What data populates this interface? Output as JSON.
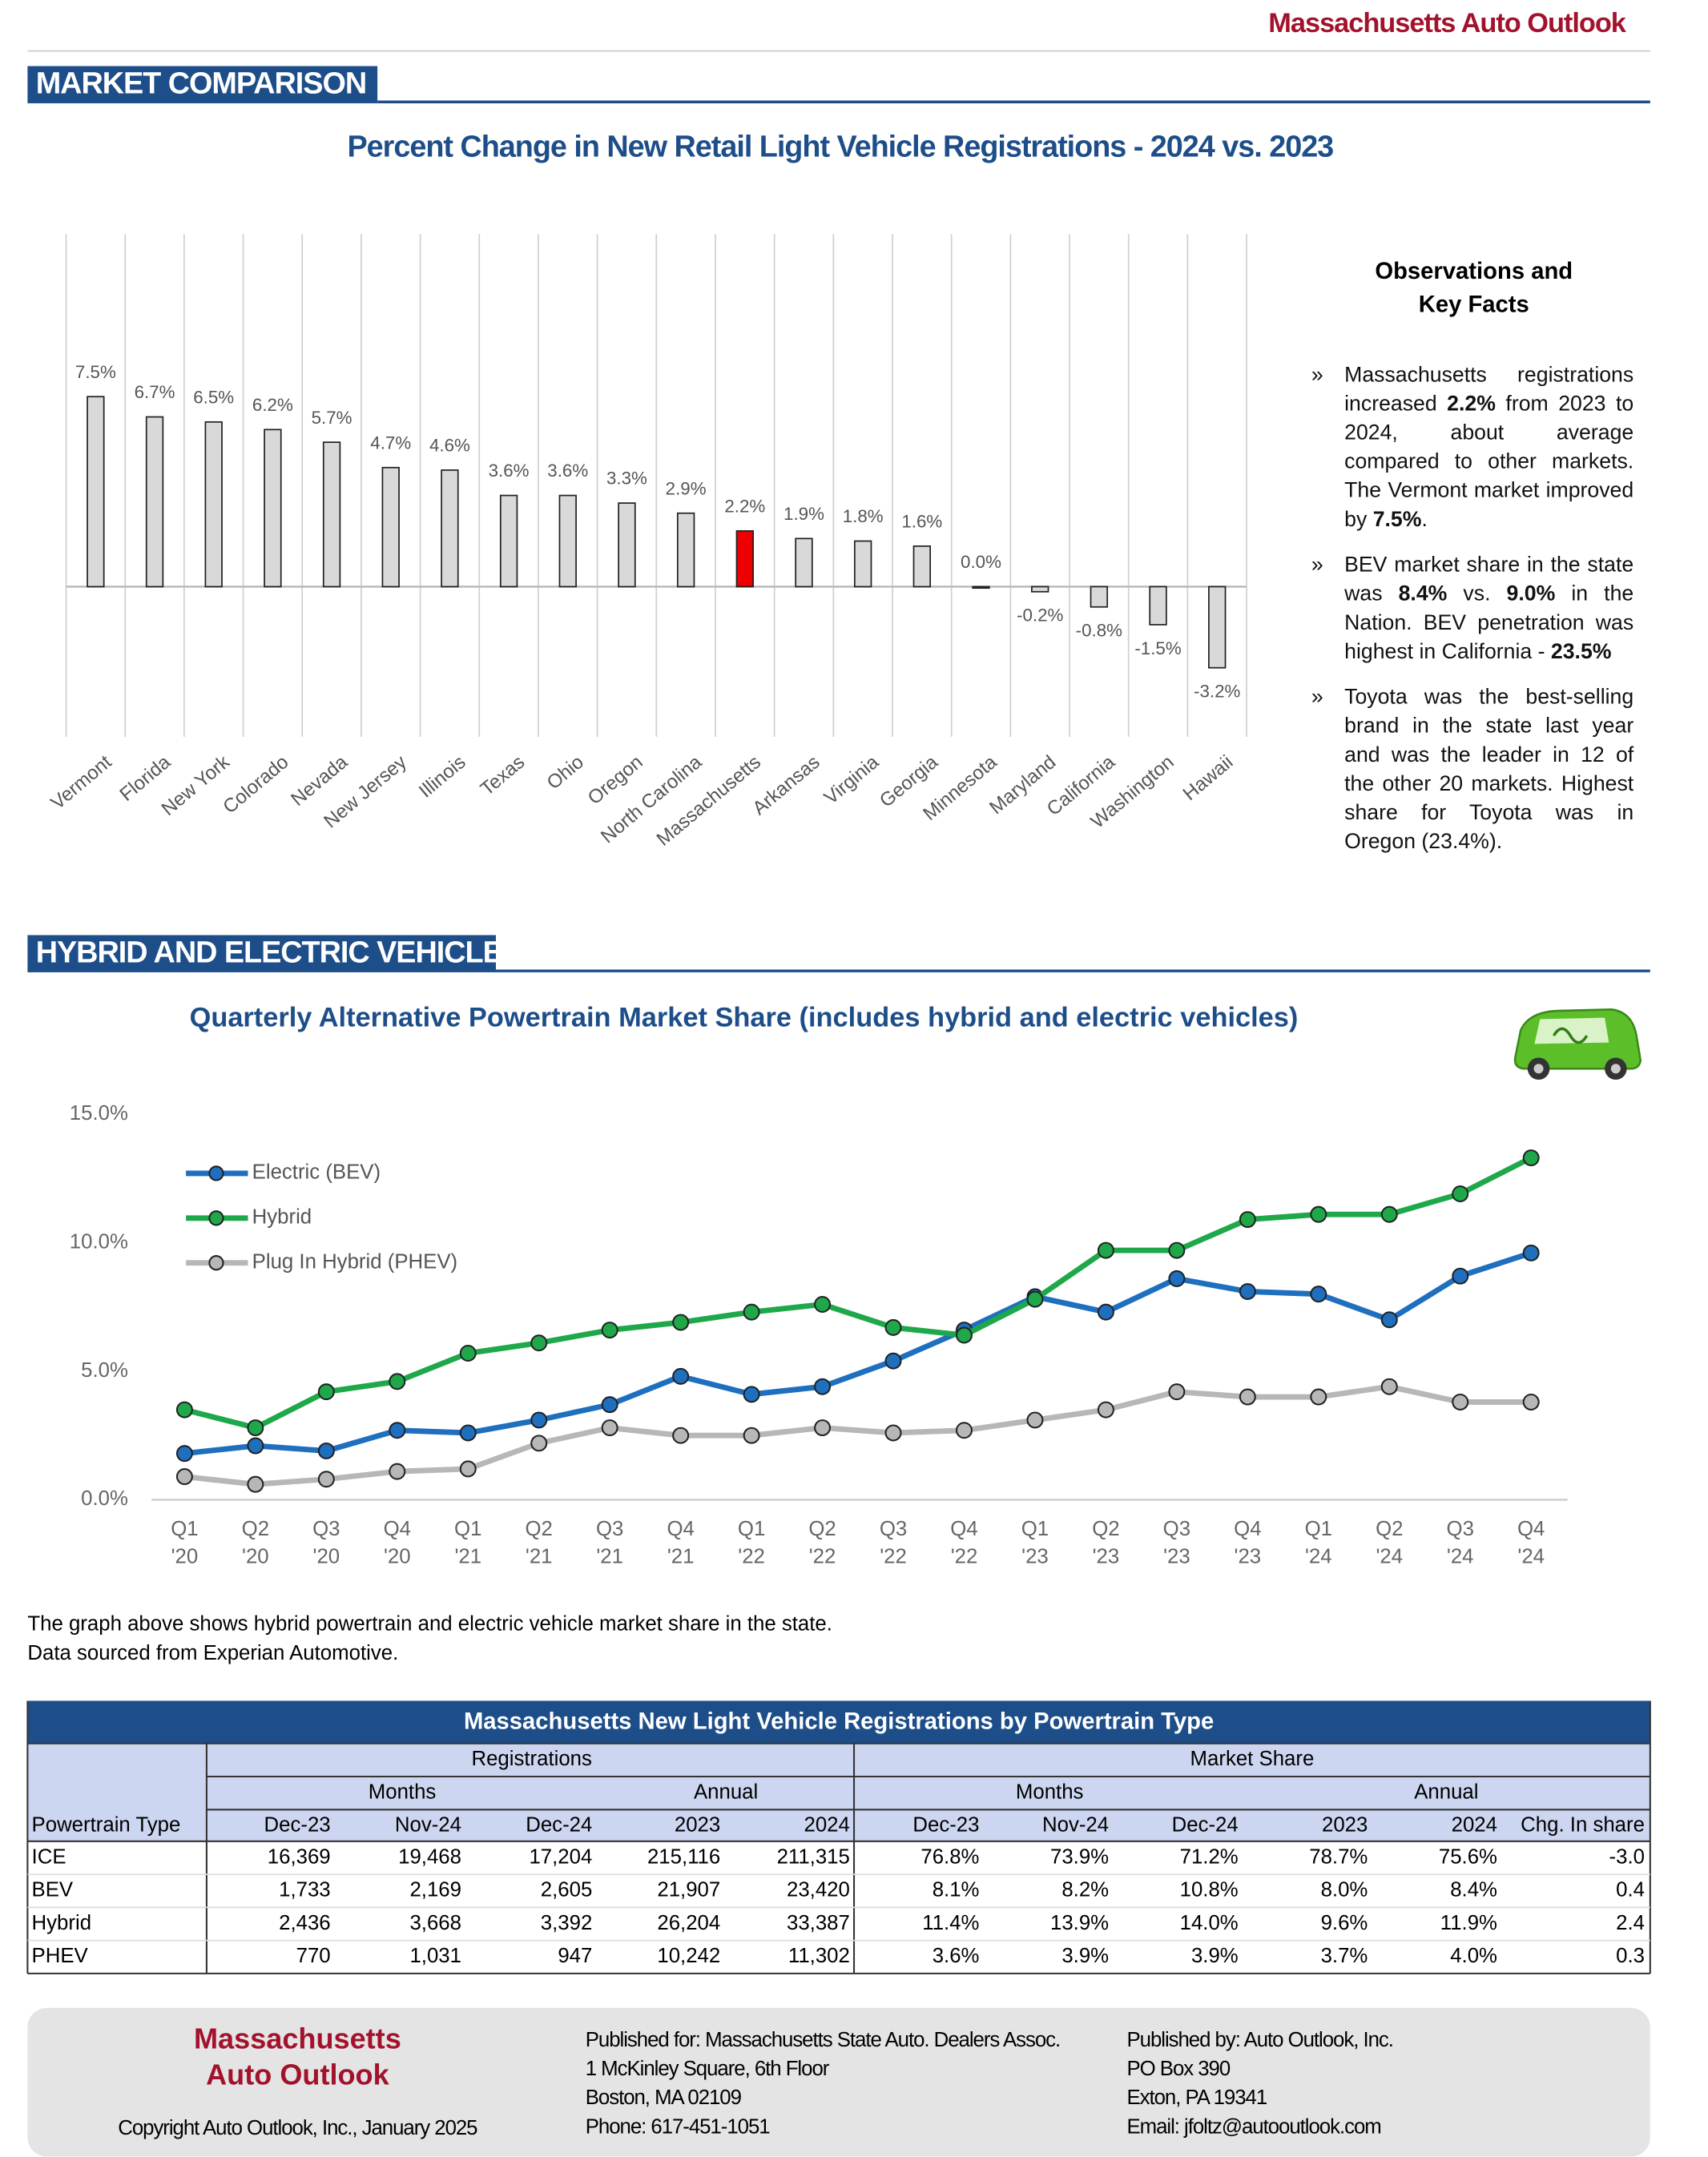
{
  "header": {
    "publication": "Massachusetts Auto Outlook"
  },
  "sections": [
    "MARKET COMPARISON",
    "HYBRID AND ELECTRIC VEHICLES"
  ],
  "chart_data": [
    {
      "type": "bar",
      "title": "Percent Change in New Retail Light Vehicle Registrations - 2024 vs. 2023",
      "categories": [
        "Vermont",
        "Florida",
        "New York",
        "Colorado",
        "Nevada",
        "New Jersey",
        "Illinois",
        "Texas",
        "Ohio",
        "Oregon",
        "North Carolina",
        "Massachusetts",
        "Arkansas",
        "Virginia",
        "Georgia",
        "Minnesota",
        "Maryland",
        "California",
        "Washington",
        "Hawaii"
      ],
      "values": [
        7.5,
        6.7,
        6.5,
        6.2,
        5.7,
        4.7,
        4.6,
        3.6,
        3.6,
        3.3,
        2.9,
        2.2,
        1.9,
        1.8,
        1.6,
        0.0,
        -0.2,
        -0.8,
        -1.5,
        -3.2
      ],
      "value_labels": [
        "7.5%",
        "6.7%",
        "6.5%",
        "6.2%",
        "5.7%",
        "4.7%",
        "4.6%",
        "3.6%",
        "3.6%",
        "3.3%",
        "2.9%",
        "2.2%",
        "1.9%",
        "1.8%",
        "1.6%",
        "0.0%",
        "-0.2%",
        "-0.8%",
        "-1.5%",
        "-3.2%"
      ],
      "bar_colors": [
        "#d9d9d9",
        "#d9d9d9",
        "#d9d9d9",
        "#d9d9d9",
        "#d9d9d9",
        "#d9d9d9",
        "#d9d9d9",
        "#d9d9d9",
        "#d9d9d9",
        "#d9d9d9",
        "#d9d9d9",
        "#ee0000",
        "#d9d9d9",
        "#d9d9d9",
        "#d9d9d9",
        "#d9d9d9",
        "#d9d9d9",
        "#d9d9d9",
        "#d9d9d9",
        "#d9d9d9"
      ],
      "grid": true
    },
    {
      "type": "line",
      "title": "Quarterly Alternative Powertrain Market Share (includes hybrid and electric vehicles)",
      "categories": [
        [
          "Q1",
          "'20"
        ],
        [
          "Q2",
          "'20"
        ],
        [
          "Q3",
          "'20"
        ],
        [
          "Q4",
          "'20"
        ],
        [
          "Q1",
          "'21"
        ],
        [
          "Q2",
          "'21"
        ],
        [
          "Q3",
          "'21"
        ],
        [
          "Q4",
          "'21"
        ],
        [
          "Q1",
          "'22"
        ],
        [
          "Q2",
          "'22"
        ],
        [
          "Q3",
          "'22"
        ],
        [
          "Q4",
          "'22"
        ],
        [
          "Q1",
          "'23"
        ],
        [
          "Q2",
          "'23"
        ],
        [
          "Q3",
          "'23"
        ],
        [
          "Q4",
          "'23"
        ],
        [
          "Q1",
          "'24"
        ],
        [
          "Q2",
          "'24"
        ],
        [
          "Q3",
          "'24"
        ],
        [
          "Q4",
          "'24"
        ]
      ],
      "series": [
        {
          "name": "Electric (BEV)",
          "color": "#1f6fbf",
          "values": [
            1.8,
            2.1,
            1.9,
            2.7,
            2.6,
            3.1,
            3.7,
            4.8,
            4.1,
            4.4,
            5.4,
            6.6,
            7.9,
            7.3,
            8.6,
            8.1,
            8.0,
            7.0,
            8.7,
            9.6
          ]
        },
        {
          "name": "Hybrid",
          "color": "#1fa84a",
          "values": [
            3.5,
            2.8,
            4.2,
            4.6,
            5.7,
            6.1,
            6.6,
            6.9,
            7.3,
            7.6,
            6.7,
            6.4,
            7.8,
            9.7,
            9.7,
            10.9,
            11.1,
            11.1,
            11.9,
            13.3
          ]
        },
        {
          "name": "Plug In Hybrid (PHEV)",
          "color": "#b7b7b7",
          "values": [
            0.9,
            0.6,
            0.8,
            1.1,
            1.2,
            2.2,
            2.8,
            2.5,
            2.5,
            2.8,
            2.6,
            2.7,
            3.1,
            3.5,
            4.2,
            4.0,
            4.0,
            4.4,
            3.8,
            3.8
          ]
        }
      ],
      "ylim": [
        0,
        15
      ],
      "yticks": [
        {
          "value": 0,
          "label": "0.0%"
        },
        {
          "value": 5,
          "label": "5.0%"
        },
        {
          "value": 10,
          "label": "10.0%"
        },
        {
          "value": 15,
          "label": "15.0%"
        }
      ],
      "legend": "upper left",
      "grid": false
    }
  ],
  "observations": {
    "title": [
      "Observations and",
      "Key Facts"
    ],
    "items": [
      [
        "Massachusetts registrations increased ",
        "2.2%",
        " from 2023 to 2024, about average compared to other markets. The Vermont market improved by ",
        "7.5%",
        "."
      ],
      [
        "BEV market share in the state was ",
        "8.4%",
        " vs. ",
        "9.0%",
        " in the Nation. BEV penetration was highest in California - ",
        "23.5%"
      ],
      [
        "Toyota was the best-selling brand in the state last year and was the leader in 12 of the other 20 markets. Highest share for Toyota was in Oregon (23.4%)."
      ]
    ]
  },
  "caption": [
    "The graph above shows hybrid powertrain and electric vehicle market share in the state.",
    "Data sourced from Experian Automotive."
  ],
  "table": {
    "title": "Massachusetts New Light Vehicle Registrations by Powertrain Type",
    "groups": [
      "Registrations",
      "Market Share"
    ],
    "subgroups": [
      "Months",
      "Annual",
      "Months",
      "Annual"
    ],
    "columns": [
      "Powertrain Type",
      "Dec-23",
      "Nov-24",
      "Dec-24",
      "2023",
      "2024",
      "Dec-23",
      "Nov-24",
      "Dec-24",
      "2023",
      "2024",
      "Chg. In share"
    ],
    "rows": [
      [
        "ICE",
        "16,369",
        "19,468",
        "17,204",
        "215,116",
        "211,315",
        "76.8%",
        "73.9%",
        "71.2%",
        "78.7%",
        "75.6%",
        "-3.0"
      ],
      [
        "BEV",
        "1,733",
        "2,169",
        "2,605",
        "21,907",
        "23,420",
        "8.1%",
        "8.2%",
        "10.8%",
        "8.0%",
        "8.4%",
        "0.4"
      ],
      [
        "Hybrid",
        "2,436",
        "3,668",
        "3,392",
        "26,204",
        "33,387",
        "11.4%",
        "13.9%",
        "14.0%",
        "9.6%",
        "11.9%",
        "2.4"
      ],
      [
        "PHEV",
        "770",
        "1,031",
        "947",
        "10,242",
        "11,302",
        "3.6%",
        "3.9%",
        "3.9%",
        "3.7%",
        "4.0%",
        "0.3"
      ]
    ]
  },
  "footer": {
    "brand": [
      "Massachusetts",
      "Auto Outlook"
    ],
    "copyright": "Copyright Auto Outlook, Inc., January 2025",
    "published_for": [
      "Published for: Massachusetts State Auto. Dealers Assoc.",
      "1 McKinley Square, 6th Floor",
      "Boston, MA  02109",
      "Phone: 617-451-1051"
    ],
    "published_by": [
      "Published by: Auto Outlook, Inc.",
      "PO Box 390",
      "Exton, PA  19341",
      "Email: jfoltz@autooutlook.com"
    ]
  }
}
